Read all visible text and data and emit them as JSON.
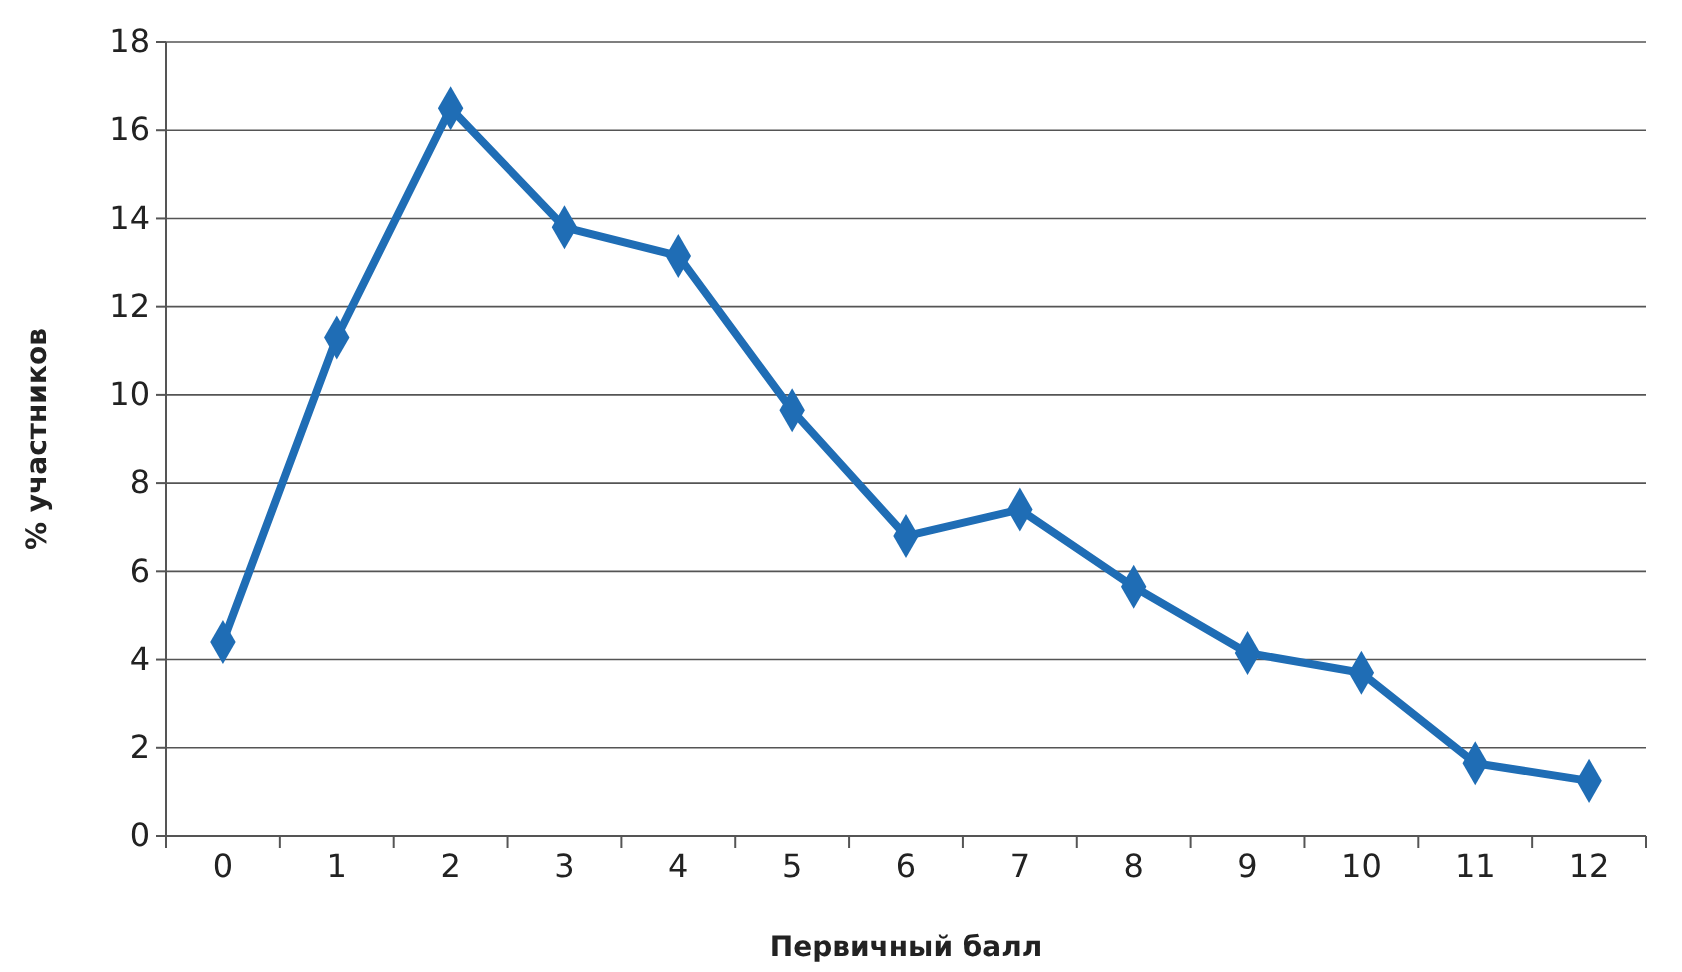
{
  "chart_data": {
    "type": "line",
    "xlabel": "Первичный балл",
    "ylabel": "% участников",
    "categories": [
      "0",
      "1",
      "2",
      "3",
      "4",
      "5",
      "6",
      "7",
      "8",
      "9",
      "10",
      "11",
      "12"
    ],
    "series": [
      {
        "color": "#1f6db5",
        "values": [
          4.4,
          11.3,
          16.5,
          13.8,
          13.15,
          9.65,
          6.8,
          7.4,
          5.65,
          4.15,
          3.7,
          1.65,
          1.25
        ]
      }
    ],
    "ylim": [
      0,
      18
    ],
    "yticks": [
      0,
      2,
      4,
      6,
      8,
      10,
      12,
      14,
      16,
      18
    ],
    "grid": "y",
    "marker": "diamond",
    "line_style": "solid"
  }
}
